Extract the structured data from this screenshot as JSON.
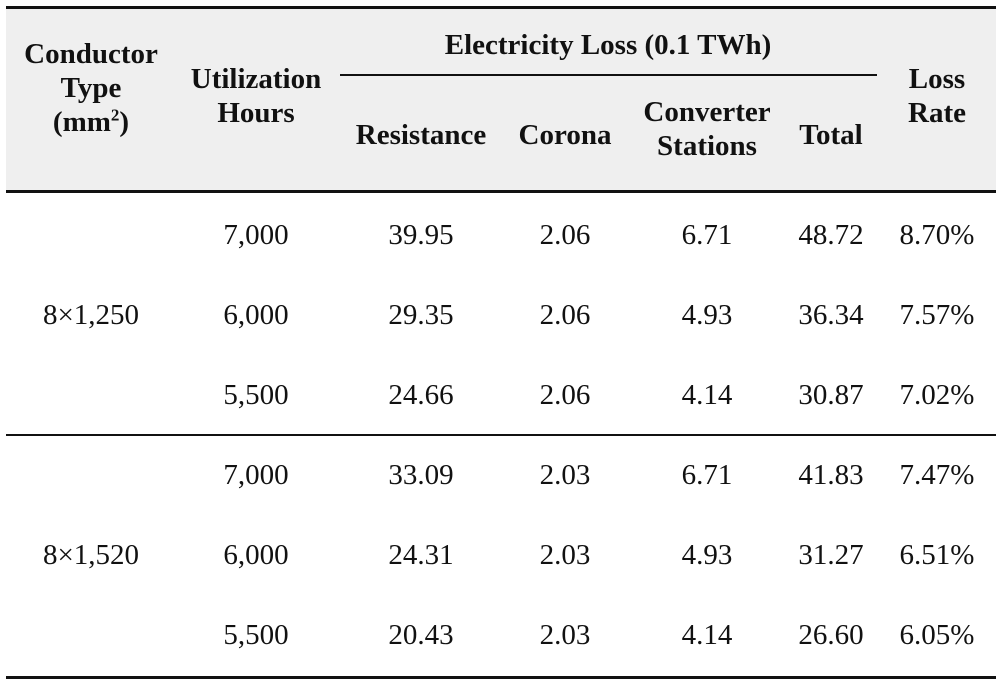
{
  "table": {
    "headers": {
      "conductor_line1": "Conductor",
      "conductor_line2": "Type",
      "conductor_line3_pre": "(mm",
      "conductor_sup": "2",
      "conductor_line3_post": ")",
      "utilization_line1": "Utilization",
      "utilization_line2": "Hours",
      "group_label": "Electricity Loss (0.1 TWh)",
      "resistance": "Resistance",
      "corona": "Corona",
      "converter_line1": "Converter",
      "converter_line2": "Stations",
      "total": "Total",
      "lossrate_line1": "Loss",
      "lossrate_line2": "Rate"
    },
    "groups": [
      {
        "conductor": "8×1,250",
        "rows": [
          {
            "hours": "7,000",
            "resistance": "39.95",
            "corona": "2.06",
            "converter": "6.71",
            "total": "48.72",
            "loss_rate": "8.70%"
          },
          {
            "hours": "6,000",
            "resistance": "29.35",
            "corona": "2.06",
            "converter": "4.93",
            "total": "36.34",
            "loss_rate": "7.57%"
          },
          {
            "hours": "5,500",
            "resistance": "24.66",
            "corona": "2.06",
            "converter": "4.14",
            "total": "30.87",
            "loss_rate": "7.02%"
          }
        ]
      },
      {
        "conductor": "8×1,520",
        "rows": [
          {
            "hours": "7,000",
            "resistance": "33.09",
            "corona": "2.03",
            "converter": "6.71",
            "total": "41.83",
            "loss_rate": "7.47%"
          },
          {
            "hours": "6,000",
            "resistance": "24.31",
            "corona": "2.03",
            "converter": "4.93",
            "total": "31.27",
            "loss_rate": "6.51%"
          },
          {
            "hours": "5,500",
            "resistance": "20.43",
            "corona": "2.03",
            "converter": "4.14",
            "total": "26.60",
            "loss_rate": "6.05%"
          }
        ]
      }
    ]
  }
}
